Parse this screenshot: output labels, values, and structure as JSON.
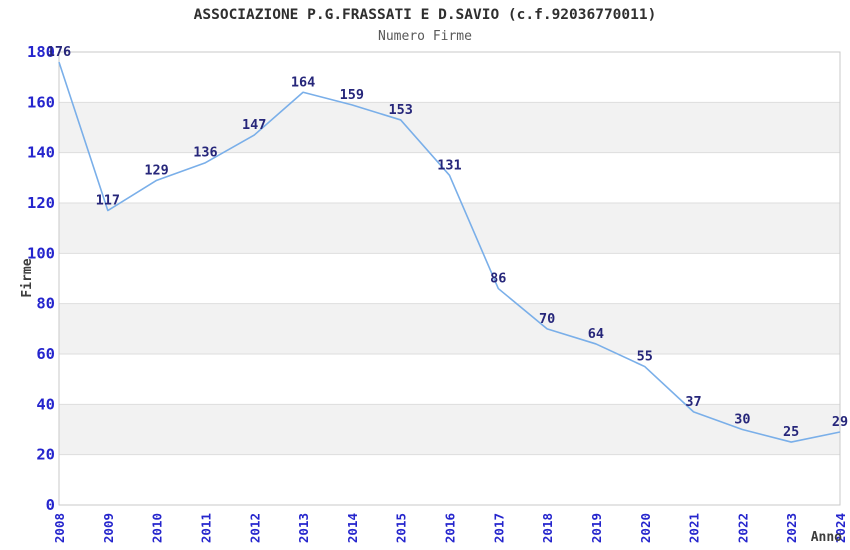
{
  "title": "ASSOCIAZIONE P.G.FRASSATI E D.SAVIO (c.f.92036770011)",
  "subtitle": "Numero Firme",
  "chart_data": {
    "type": "line",
    "title": "ASSOCIAZIONE P.G.FRASSATI E D.SAVIO (c.f.92036770011)",
    "subtitle": "Numero Firme",
    "xlabel": "Anno",
    "ylabel": "Firme",
    "x": [
      2008,
      2009,
      2010,
      2011,
      2012,
      2013,
      2014,
      2015,
      2016,
      2017,
      2018,
      2019,
      2020,
      2021,
      2022,
      2023,
      2024
    ],
    "series": [
      {
        "name": "Numero Firme",
        "values": [
          176,
          117,
          129,
          136,
          147,
          164,
          159,
          153,
          131,
          86,
          70,
          64,
          55,
          37,
          30,
          25,
          29
        ]
      }
    ],
    "ylim": [
      0,
      180
    ],
    "ytick_step": 20,
    "yticks": [
      0,
      20,
      40,
      60,
      80,
      100,
      120,
      140,
      160,
      180
    ],
    "grid": true,
    "legend": "none",
    "data_labels": true,
    "colors": {
      "line": "#7aafe9",
      "tick_label": "#2525cd",
      "data_label": "#26267a",
      "band": "#f2f2f2",
      "grid": "#dedede",
      "border": "#c9c9c9",
      "title": "#2f2f2f",
      "subtitle": "#595959",
      "axis_title": "#3d3d3d",
      "background": "#ffffff"
    }
  }
}
